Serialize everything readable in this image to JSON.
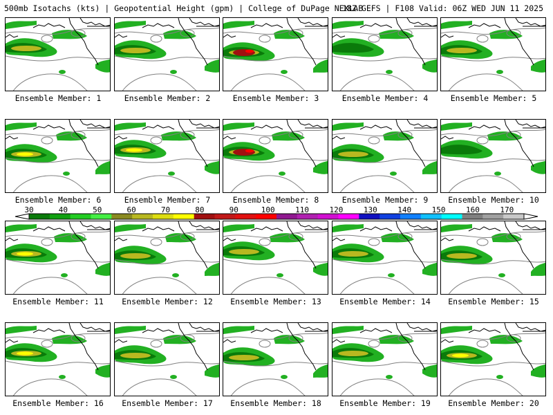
{
  "header": {
    "title_left": "500mb Isotachs (kts) | Geopotential Height (gpm) | College of DuPage NEXLAB",
    "title_right": "18Z GEFS | F108 Valid: 06Z WED JUN 11 2025"
  },
  "members": [
    {
      "label": "Ensemble Member: 1",
      "intensity": 2
    },
    {
      "label": "Ensemble Member: 2",
      "intensity": 2
    },
    {
      "label": "Ensemble Member: 3",
      "intensity": 4
    },
    {
      "label": "Ensemble Member: 4",
      "intensity": 1
    },
    {
      "label": "Ensemble Member: 5",
      "intensity": 2
    },
    {
      "label": "Ensemble Member: 6",
      "intensity": 3
    },
    {
      "label": "Ensemble Member: 7",
      "intensity": 3
    },
    {
      "label": "Ensemble Member: 8",
      "intensity": 4
    },
    {
      "label": "Ensemble Member: 9",
      "intensity": 2
    },
    {
      "label": "Ensemble Member: 10",
      "intensity": 1
    },
    {
      "label": "Ensemble Member: 11",
      "intensity": 3
    },
    {
      "label": "Ensemble Member: 12",
      "intensity": 2
    },
    {
      "label": "Ensemble Member: 13",
      "intensity": 2
    },
    {
      "label": "Ensemble Member: 14",
      "intensity": 2
    },
    {
      "label": "Ensemble Member: 15",
      "intensity": 2
    },
    {
      "label": "Ensemble Member: 16",
      "intensity": 3
    },
    {
      "label": "Ensemble Member: 17",
      "intensity": 2
    },
    {
      "label": "Ensemble Member: 18",
      "intensity": 2
    },
    {
      "label": "Ensemble Member: 19",
      "intensity": 2
    },
    {
      "label": "Ensemble Member: 20",
      "intensity": 3
    }
  ],
  "colorbar": {
    "labels": [
      "30",
      "40",
      "50",
      "60",
      "70",
      "80",
      "90",
      "100",
      "110",
      "120",
      "130",
      "140",
      "150",
      "160",
      "170"
    ],
    "colors": [
      "#0a7a0a",
      "#10a010",
      "#22cc22",
      "#44ee44",
      "#8a8a20",
      "#b8b820",
      "#dddd10",
      "#ffff00",
      "#a01010",
      "#c01818",
      "#e01010",
      "#ff0000",
      "#901890",
      "#b020b0",
      "#d010d0",
      "#ff00ff",
      "#1010c0",
      "#1040e0",
      "#1080ff",
      "#10c0ff",
      "#00ffff",
      "#808080",
      "#a0a0a0",
      "#c8c8c8"
    ]
  }
}
